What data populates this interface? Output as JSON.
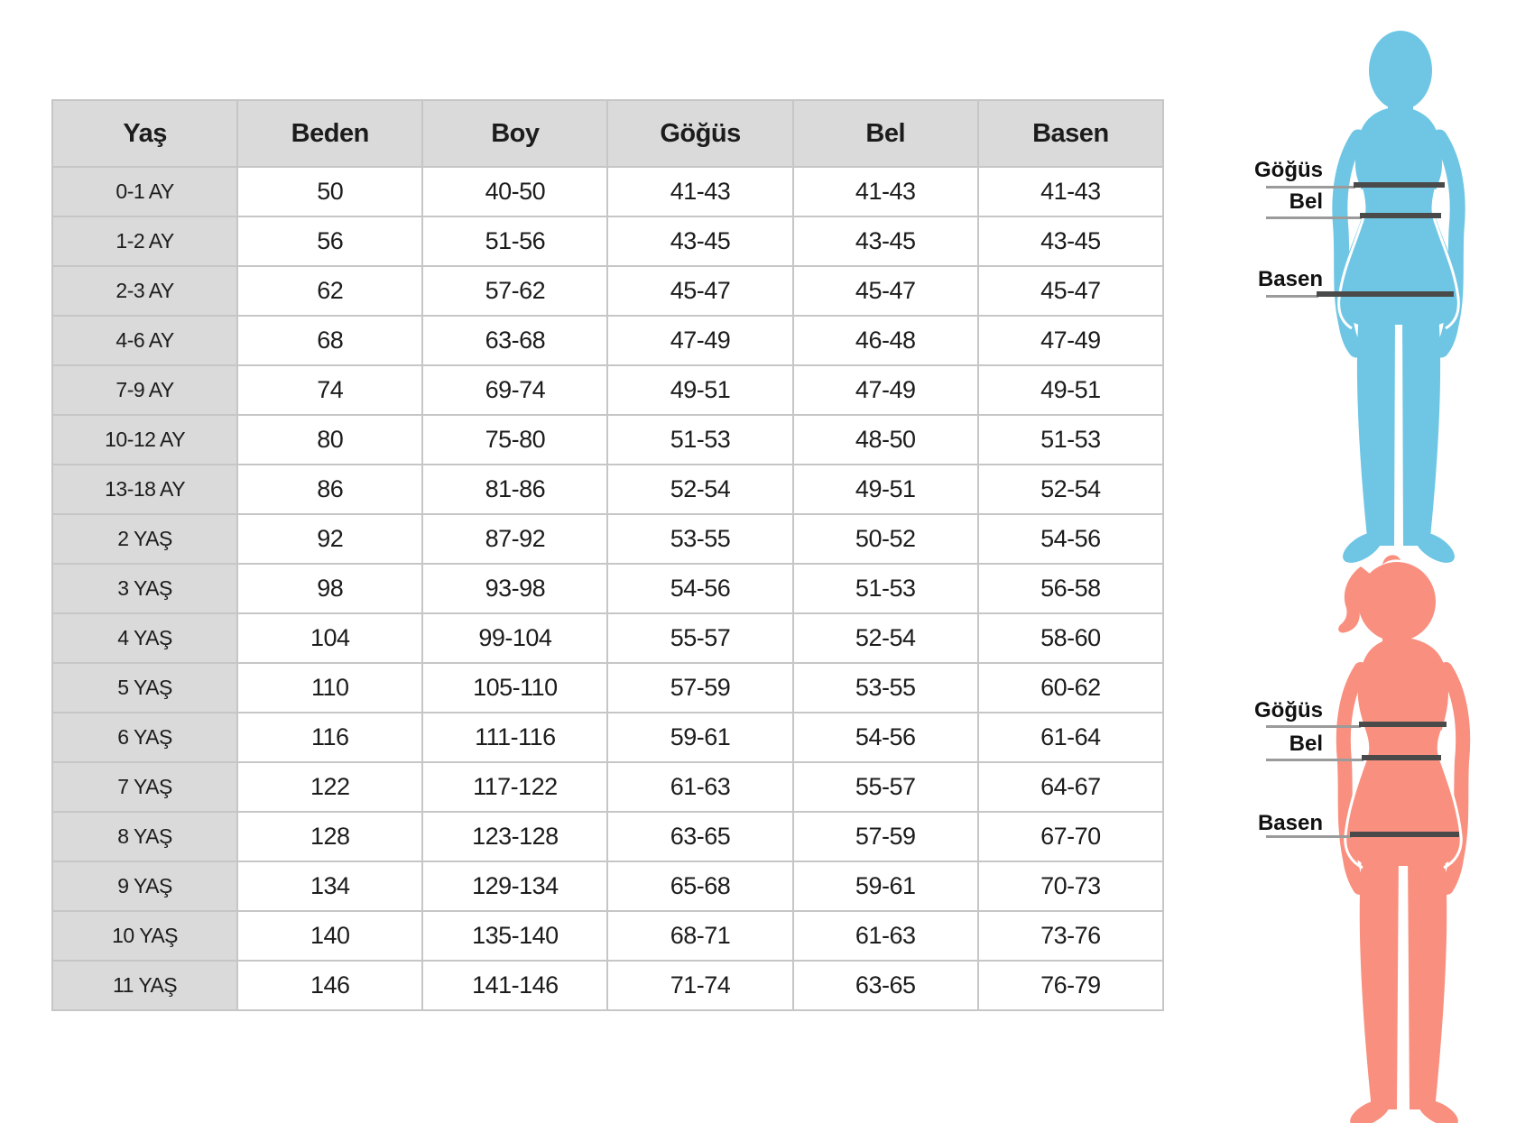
{
  "table": {
    "headers": [
      "Yaş",
      "Beden",
      "Boy",
      "Göğüs",
      "Bel",
      "Basen"
    ],
    "rows": [
      [
        "0-1 AY",
        "50",
        "40-50",
        "41-43",
        "41-43",
        "41-43"
      ],
      [
        "1-2 AY",
        "56",
        "51-56",
        "43-45",
        "43-45",
        "43-45"
      ],
      [
        "2-3 AY",
        "62",
        "57-62",
        "45-47",
        "45-47",
        "45-47"
      ],
      [
        "4-6 AY",
        "68",
        "63-68",
        "47-49",
        "46-48",
        "47-49"
      ],
      [
        "7-9 AY",
        "74",
        "69-74",
        "49-51",
        "47-49",
        "49-51"
      ],
      [
        "10-12 AY",
        "80",
        "75-80",
        "51-53",
        "48-50",
        "51-53"
      ],
      [
        "13-18 AY",
        "86",
        "81-86",
        "52-54",
        "49-51",
        "52-54"
      ],
      [
        "2 YAŞ",
        "92",
        "87-92",
        "53-55",
        "50-52",
        "54-56"
      ],
      [
        "3 YAŞ",
        "98",
        "93-98",
        "54-56",
        "51-53",
        "56-58"
      ],
      [
        "4 YAŞ",
        "104",
        "99-104",
        "55-57",
        "52-54",
        "58-60"
      ],
      [
        "5 YAŞ",
        "110",
        "105-110",
        "57-59",
        "53-55",
        "60-62"
      ],
      [
        "6 YAŞ",
        "116",
        "111-116",
        "59-61",
        "54-56",
        "61-64"
      ],
      [
        "7 YAŞ",
        "122",
        "117-122",
        "61-63",
        "55-57",
        "64-67"
      ],
      [
        "8 YAŞ",
        "128",
        "123-128",
        "63-65",
        "57-59",
        "67-70"
      ],
      [
        "9 YAŞ",
        "134",
        "129-134",
        "65-68",
        "59-61",
        "70-73"
      ],
      [
        "10 YAŞ",
        "140",
        "135-140",
        "68-71",
        "61-63",
        "73-76"
      ],
      [
        "11 YAŞ",
        "146",
        "141-146",
        "71-74",
        "63-65",
        "76-79"
      ]
    ]
  },
  "figures": {
    "boy": {
      "color": "#6EC6E4",
      "labels": {
        "chest": "Göğüs",
        "waist": "Bel",
        "hip": "Basen"
      }
    },
    "girl": {
      "color": "#F98F7E",
      "labels": {
        "chest": "Göğüs",
        "waist": "Bel",
        "hip": "Basen"
      }
    }
  },
  "colors": {
    "header_bg": "#dadada",
    "row_label_bg": "#dadada",
    "table_border": "#c6c6c6",
    "measure_line_dark": "#4a4a4a",
    "measure_line_thin": "#9b9b9b",
    "text": "#1c1c1c"
  },
  "chart_data": {
    "type": "table",
    "columns": [
      "Yaş",
      "Beden",
      "Boy",
      "Göğüs",
      "Bel",
      "Basen"
    ],
    "rows": [
      [
        "0-1 AY",
        "50",
        "40-50",
        "41-43",
        "41-43",
        "41-43"
      ],
      [
        "1-2 AY",
        "56",
        "51-56",
        "43-45",
        "43-45",
        "43-45"
      ],
      [
        "2-3 AY",
        "62",
        "57-62",
        "45-47",
        "45-47",
        "45-47"
      ],
      [
        "4-6 AY",
        "68",
        "63-68",
        "47-49",
        "46-48",
        "47-49"
      ],
      [
        "7-9 AY",
        "74",
        "69-74",
        "49-51",
        "47-49",
        "49-51"
      ],
      [
        "10-12 AY",
        "80",
        "75-80",
        "51-53",
        "48-50",
        "51-53"
      ],
      [
        "13-18 AY",
        "86",
        "81-86",
        "52-54",
        "49-51",
        "52-54"
      ],
      [
        "2 YAŞ",
        "92",
        "87-92",
        "53-55",
        "50-52",
        "54-56"
      ],
      [
        "3 YAŞ",
        "98",
        "93-98",
        "54-56",
        "51-53",
        "56-58"
      ],
      [
        "4 YAŞ",
        "104",
        "99-104",
        "55-57",
        "52-54",
        "58-60"
      ],
      [
        "5 YAŞ",
        "110",
        "105-110",
        "57-59",
        "53-55",
        "60-62"
      ],
      [
        "6 YAŞ",
        "116",
        "111-116",
        "59-61",
        "54-56",
        "61-64"
      ],
      [
        "7 YAŞ",
        "122",
        "117-122",
        "61-63",
        "55-57",
        "64-67"
      ],
      [
        "8 YAŞ",
        "128",
        "123-128",
        "63-65",
        "57-59",
        "67-70"
      ],
      [
        "9 YAŞ",
        "134",
        "129-134",
        "65-68",
        "59-61",
        "70-73"
      ],
      [
        "10 YAŞ",
        "140",
        "135-140",
        "68-71",
        "61-63",
        "73-76"
      ],
      [
        "11 YAŞ",
        "146",
        "141-146",
        "71-74",
        "63-65",
        "76-79"
      ]
    ]
  }
}
